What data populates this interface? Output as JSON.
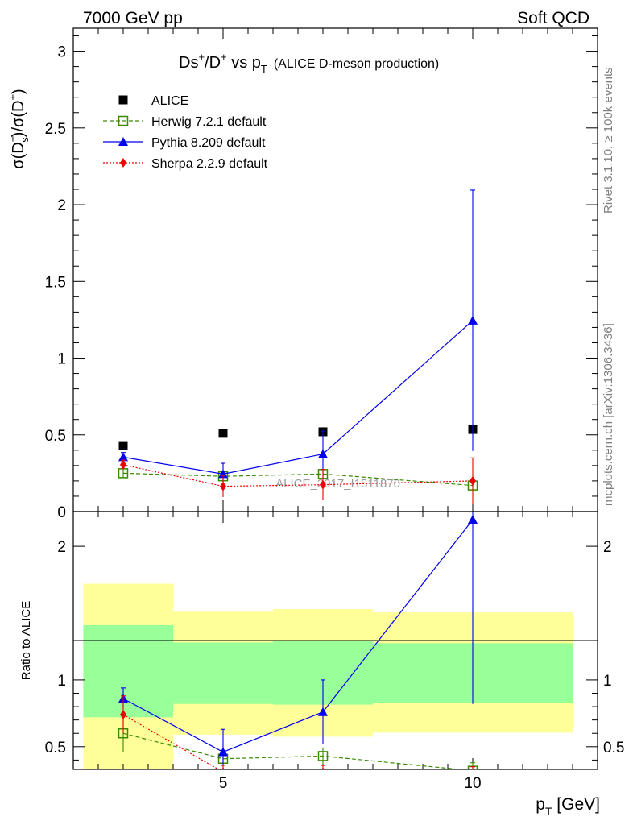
{
  "header": {
    "energy_label": "7000 GeV pp",
    "process_label": "Soft QCD"
  },
  "side_labels": {
    "rivet": "Rivet 3.1.10, ≥ 100k events",
    "mcplots": "mcplots.cern.ch [arXiv:1306.3436]"
  },
  "chart_data": [
    {
      "type": "scatter",
      "panel": "main",
      "title": "Ds⁺/D⁺ vs p_T (ALICE D-meson production)",
      "title_parts": {
        "main": "Ds",
        "sup1": "+",
        "mid": "/D",
        "sup2": "+",
        "vs": " vs p",
        "sub": "T",
        "note": "(ALICE D-meson production)"
      },
      "ylabel": "σ(D⁺_s)/σ(D⁺)",
      "ylabel_parts": {
        "a": "σ(D",
        "sup1": "+",
        "sub1": "s",
        "b": ")/σ(D",
        "sup2": "+",
        "c": ")"
      },
      "xlim": [
        2,
        12.5
      ],
      "ylim": [
        0,
        3.15
      ],
      "y_ticks": [
        0,
        0.5,
        1,
        1.5,
        2,
        2.5,
        3
      ],
      "y_tick_labels": [
        "0",
        "0.5",
        "1",
        "1.5",
        "2",
        "2.5",
        "3"
      ],
      "watermark": "ALICE_2017_I1511870",
      "legend_position": "top-left",
      "series": [
        {
          "name": "ALICE",
          "style": "data",
          "color": "#000000",
          "x": [
            3,
            5,
            7,
            10
          ],
          "y": [
            0.43,
            0.51,
            0.52,
            0.535
          ]
        },
        {
          "name": "Herwig 7.2.1 default",
          "style": "herwig",
          "color": "#3a8a00",
          "x": [
            3,
            5,
            7,
            10
          ],
          "y": [
            0.25,
            0.23,
            0.245,
            0.17
          ],
          "err": [
            0.03,
            0.02,
            0.03,
            0.03
          ]
        },
        {
          "name": "Pythia 8.209 default",
          "style": "pythia",
          "color": "#0000ee",
          "x": [
            3,
            5,
            7,
            10
          ],
          "y": [
            0.355,
            0.245,
            0.375,
            1.245
          ],
          "err": [
            0.03,
            0.07,
            0.15,
            0.85
          ]
        },
        {
          "name": "Sherpa 2.2.9 default",
          "style": "sherpa",
          "color": "#ee0000",
          "x": [
            3,
            5,
            7,
            10
          ],
          "y": [
            0.305,
            0.165,
            0.175,
            0.2
          ],
          "err": [
            0.03,
            0.07,
            0.1,
            0.15
          ]
        }
      ]
    },
    {
      "type": "scatter",
      "panel": "ratio",
      "ylabel": "Ratio to ALICE",
      "xlabel": "p_T [GeV]",
      "xlabel_parts": {
        "a": "p",
        "sub": "T",
        "b": " [GeV]"
      },
      "xlim": [
        2,
        12.5
      ],
      "ylim": [
        0.33,
        2.26
      ],
      "x_ticks": [
        5,
        10
      ],
      "x_tick_labels": [
        "5",
        "10"
      ],
      "y_ticks": [
        0.5,
        1,
        2
      ],
      "y_tick_labels": [
        "0.5",
        "1",
        "2"
      ],
      "bands": [
        {
          "x_low": 2.2,
          "x_high": 4.0,
          "yellow": [
            0.33,
            1.72
          ],
          "green": [
            0.72,
            1.41
          ]
        },
        {
          "x_low": 4.0,
          "x_high": 6.0,
          "yellow": [
            0.59,
            1.51
          ],
          "green": [
            0.82,
            1.28
          ]
        },
        {
          "x_low": 6.0,
          "x_high": 8.0,
          "yellow": [
            0.575,
            1.53
          ],
          "green": [
            0.815,
            1.29
          ]
        },
        {
          "x_low": 8.0,
          "x_high": 12.0,
          "yellow": [
            0.605,
            1.505
          ],
          "green": [
            0.83,
            1.275
          ]
        }
      ],
      "series": [
        {
          "name": "Herwig 7.2.1 default",
          "style": "herwig",
          "color": "#3a8a00",
          "x": [
            3,
            5,
            7,
            10
          ],
          "y": [
            0.6,
            0.41,
            0.43,
            0.32
          ],
          "err": [
            0.14,
            0.03,
            0.06,
            0.06
          ]
        },
        {
          "name": "Pythia 8.209 default",
          "style": "pythia",
          "color": "#0000ee",
          "x": [
            3,
            5,
            7,
            10
          ],
          "y": [
            0.86,
            0.46,
            0.76,
            2.2
          ],
          "err": [
            0.08,
            0.17,
            0.24,
            1.38
          ]
        },
        {
          "name": "Sherpa 2.2.9 default",
          "style": "sherpa",
          "color": "#ee0000",
          "x": [
            3,
            5,
            7,
            10
          ],
          "y": [
            0.74,
            0.31,
            0.31,
            0.3
          ],
          "err": [
            0.14,
            0.05,
            0.05,
            0.05
          ]
        }
      ]
    }
  ]
}
